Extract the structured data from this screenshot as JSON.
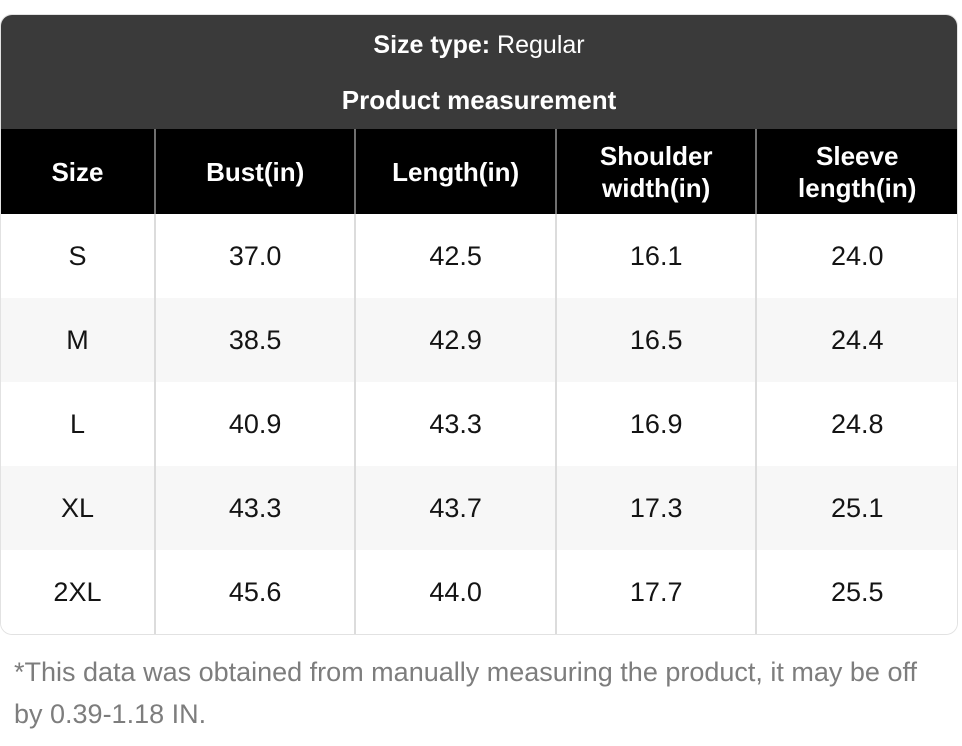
{
  "header": {
    "size_type_label": "Size type:",
    "size_type_value": "Regular",
    "title": "Product measurement"
  },
  "table": {
    "columns": [
      "Size",
      "Bust(in)",
      "Length(in)",
      "Shoulder width(in)",
      "Sleeve length(in)"
    ],
    "rows": [
      {
        "size": "S",
        "values": [
          "37.0",
          "42.5",
          "16.1",
          "24.0"
        ]
      },
      {
        "size": "M",
        "values": [
          "38.5",
          "42.9",
          "16.5",
          "24.4"
        ]
      },
      {
        "size": "L",
        "values": [
          "40.9",
          "43.3",
          "16.9",
          "24.8"
        ]
      },
      {
        "size": "XL",
        "values": [
          "43.3",
          "43.7",
          "17.3",
          "25.1"
        ]
      },
      {
        "size": "2XL",
        "values": [
          "45.6",
          "44.0",
          "17.7",
          "25.5"
        ]
      }
    ]
  },
  "footnote": "*This data was obtained from manually measuring the product, it may be off by 0.39-1.18 IN.",
  "colors": {
    "card_header_bg": "#3a3a3a",
    "table_header_bg": "#000000",
    "alt_row_bg": "#f7f7f7",
    "header_text": "#ffffff",
    "body_text": "#141414",
    "footnote_text": "#7d7d7d",
    "card_border": "#e2e2e2"
  }
}
